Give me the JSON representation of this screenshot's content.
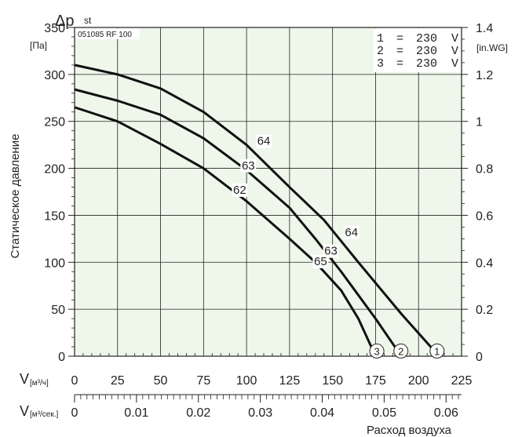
{
  "chart_data": {
    "type": "line",
    "title": "Δp st",
    "title_main": "Δp",
    "title_sub": "st",
    "model": "051085 RF 100",
    "ylabel": "Статическое давление",
    "yunit": "[Па]",
    "ylabel_right_unit": "[in.WG]",
    "xlabel": "Расход воздуха",
    "x_axis_label_m3h": "V",
    "x_axis_unit_m3h": "[м³/ч]",
    "x_axis_label_m3s": "V",
    "x_axis_unit_m3s": "[м³/сек.]",
    "xlim": [
      0,
      225
    ],
    "ylim": [
      0,
      350
    ],
    "x_ticks": [
      "0",
      "25",
      "50",
      "75",
      "100",
      "125",
      "150",
      "175",
      "200",
      "225"
    ],
    "y_ticks": [
      "0",
      "50",
      "100",
      "150",
      "200",
      "250",
      "300",
      "350"
    ],
    "y_right_ticks": [
      "0",
      "0.2",
      "0.4",
      "0.6",
      "0.8",
      "1",
      "1.2",
      "1.4"
    ],
    "x2_ticks": [
      "0",
      "0.01",
      "0.02",
      "0.03",
      "0.04",
      "0.05",
      "0.06"
    ],
    "grid": true,
    "legend": [
      {
        "num": "1",
        "eq": "=",
        "volt": "230",
        "unit": "V"
      },
      {
        "num": "2",
        "eq": "=",
        "volt": "230",
        "unit": "V"
      },
      {
        "num": "3",
        "eq": "=",
        "volt": "230",
        "unit": "V"
      }
    ],
    "series": [
      {
        "id": "1",
        "x": [
          0,
          25,
          50,
          75,
          100,
          125,
          145,
          165,
          190,
          208
        ],
        "y": [
          310,
          300,
          285,
          260,
          225,
          180,
          145,
          100,
          45,
          8
        ]
      },
      {
        "id": "2",
        "x": [
          0,
          25,
          50,
          75,
          100,
          125,
          140,
          155,
          175,
          187
        ],
        "y": [
          284,
          272,
          257,
          232,
          198,
          158,
          125,
          90,
          40,
          8
        ]
      },
      {
        "id": "3",
        "x": [
          0,
          25,
          50,
          75,
          100,
          125,
          140,
          155,
          165,
          173
        ],
        "y": [
          265,
          250,
          226,
          200,
          165,
          125,
          100,
          70,
          40,
          8
        ]
      }
    ],
    "annotations": [
      {
        "text": "64",
        "x": 110,
        "y": 225
      },
      {
        "text": "63",
        "x": 101,
        "y": 199
      },
      {
        "text": "62",
        "x": 96,
        "y": 173
      },
      {
        "text": "64",
        "x": 161,
        "y": 128
      },
      {
        "text": "63",
        "x": 149,
        "y": 108
      },
      {
        "text": "65",
        "x": 143,
        "y": 97
      }
    ]
  }
}
